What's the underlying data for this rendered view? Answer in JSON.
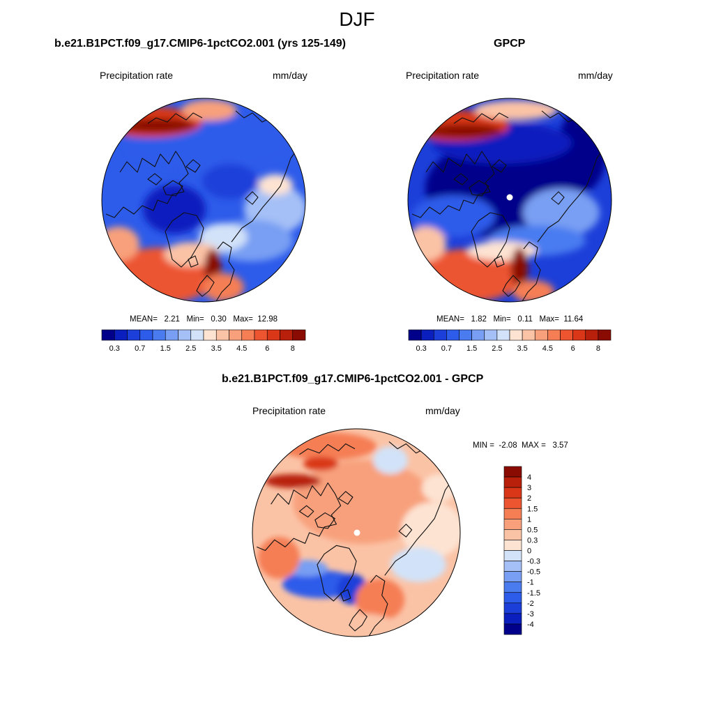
{
  "figure": {
    "title": "DJF"
  },
  "panels": [
    {
      "title": "b.e21.B1PCT.f09_g17.CMIP6-1pctCO2.001 (yrs 125-149)",
      "variable": "Precipitation rate",
      "units": "mm/day",
      "stats": {
        "mean_label": "MEAN=",
        "mean": "2.21",
        "min_label": "Min=",
        "min": "0.30",
        "max_label": "Max=",
        "max": "12.98"
      }
    },
    {
      "title": "GPCP",
      "variable": "Precipitation rate",
      "units": "mm/day",
      "stats": {
        "mean_label": "MEAN=",
        "mean": "1.82",
        "min_label": "Min=",
        "min": "0.11",
        "max_label": "Max=",
        "max": "11.64"
      }
    },
    {
      "title": "b.e21.B1PCT.f09_g17.CMIP6-1pctCO2.001 - GPCP",
      "variable": "Precipitation rate",
      "units": "mm/day",
      "stats": {
        "min_label": "MIN =",
        "min": "-2.08",
        "max_label": "MAX =",
        "max": "3.57"
      }
    }
  ],
  "chart_data": [
    {
      "type": "heatmap",
      "projection": "polar stereographic (north pole)",
      "title": "b.e21.B1PCT.f09_g17.CMIP6-1pctCO2.001 (yrs 125-149)",
      "variable": "Precipitation rate",
      "units": "mm/day",
      "mean": 2.21,
      "min": 0.3,
      "max": 12.98,
      "colorbar": {
        "orientation": "horizontal",
        "levels": [
          0.2,
          0.3,
          0.5,
          0.7,
          1,
          1.5,
          2,
          2.5,
          3,
          3.5,
          4,
          4.5,
          5,
          6,
          7,
          8
        ],
        "tick_labels": [
          "0.3",
          "0.7",
          "1.5",
          "2.5",
          "3.5",
          "4.5",
          "6",
          "8"
        ],
        "colors": [
          "#00008b",
          "#0a1fbe",
          "#1c3fd9",
          "#2d5bea",
          "#4a7cf0",
          "#789ff3",
          "#a5c0f6",
          "#d2e2f8",
          "#fde3d2",
          "#fbc3a6",
          "#f8a07c",
          "#f57e55",
          "#ec5530",
          "#d93718",
          "#b8200b",
          "#8a0b02"
        ]
      }
    },
    {
      "type": "heatmap",
      "projection": "polar stereographic (north pole)",
      "title": "GPCP",
      "variable": "Precipitation rate",
      "units": "mm/day",
      "mean": 1.82,
      "min": 0.11,
      "max": 11.64,
      "colorbar": {
        "orientation": "horizontal",
        "levels": [
          0.2,
          0.3,
          0.5,
          0.7,
          1,
          1.5,
          2,
          2.5,
          3,
          3.5,
          4,
          4.5,
          5,
          6,
          7,
          8
        ],
        "tick_labels": [
          "0.3",
          "0.7",
          "1.5",
          "2.5",
          "3.5",
          "4.5",
          "6",
          "8"
        ],
        "colors": [
          "#00008b",
          "#0a1fbe",
          "#1c3fd9",
          "#2d5bea",
          "#4a7cf0",
          "#789ff3",
          "#a5c0f6",
          "#d2e2f8",
          "#fde3d2",
          "#fbc3a6",
          "#f8a07c",
          "#f57e55",
          "#ec5530",
          "#d93718",
          "#b8200b",
          "#8a0b02"
        ]
      }
    },
    {
      "type": "heatmap",
      "projection": "polar stereographic (north pole)",
      "title": "b.e21.B1PCT.f09_g17.CMIP6-1pctCO2.001 - GPCP",
      "variable": "Precipitation rate",
      "units": "mm/day",
      "min": -2.08,
      "max": 3.57,
      "colorbar": {
        "orientation": "vertical",
        "tick_labels": [
          "4",
          "3",
          "2",
          "1.5",
          "1",
          "0.5",
          "0.3",
          "0",
          "-0.3",
          "-0.5",
          "-1",
          "-1.5",
          "-2",
          "-3",
          "-4"
        ],
        "colors": [
          "#8a0b02",
          "#b8200b",
          "#d93718",
          "#ec5530",
          "#f57e55",
          "#f8a07c",
          "#fbc3a6",
          "#fde3d2",
          "#d2e2f8",
          "#a5c0f6",
          "#789ff3",
          "#4a7cf0",
          "#2d5bea",
          "#1c3fd9",
          "#0a1fbe",
          "#00008b"
        ]
      }
    }
  ]
}
